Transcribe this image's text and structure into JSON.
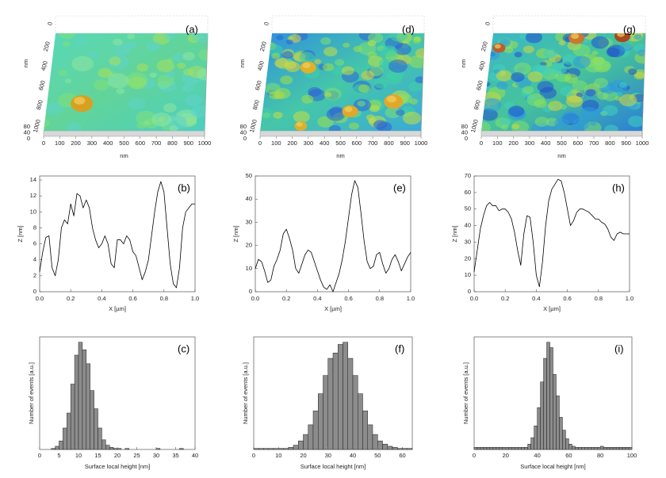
{
  "chart_data": [
    {
      "type": "surface",
      "label": "(a)",
      "xlabel": "nm",
      "ylabel": "nm",
      "xlim": [
        0,
        1000
      ],
      "xticks": [
        0,
        100,
        200,
        300,
        400,
        500,
        600,
        700,
        800,
        900,
        1000
      ],
      "ylim": [
        0,
        1000
      ],
      "yticks": [
        0,
        200,
        400,
        600,
        800,
        1000
      ],
      "zlim": [
        0,
        80
      ],
      "zticks": [
        80,
        40,
        0
      ]
    },
    {
      "type": "surface",
      "label": "(d)",
      "xlabel": "nm",
      "ylabel": "nm",
      "xlim": [
        0,
        1000
      ],
      "xticks": [
        0,
        100,
        200,
        300,
        400,
        500,
        600,
        700,
        800,
        900,
        1000
      ],
      "ylim": [
        0,
        1000
      ],
      "yticks": [
        0,
        200,
        400,
        600,
        800,
        1000
      ],
      "zlim": [
        0,
        80
      ],
      "zticks": [
        80,
        40,
        0
      ]
    },
    {
      "type": "surface",
      "label": "(g)",
      "xlabel": "nm",
      "ylabel": "nm",
      "xlim": [
        0,
        1000
      ],
      "xticks": [
        0,
        100,
        200,
        300,
        400,
        500,
        600,
        700,
        800,
        900,
        1000
      ],
      "ylim": [
        0,
        1000
      ],
      "yticks": [
        0,
        200,
        400,
        600,
        800,
        1000
      ],
      "zlim": [
        0,
        80
      ],
      "zticks": [
        80,
        40,
        0
      ]
    },
    {
      "type": "line",
      "label": "(b)",
      "xlabel": "X [µm]",
      "ylabel": "Z [nm]",
      "color": "#000000",
      "xlim": [
        0,
        1
      ],
      "ylim": [
        0,
        14.5
      ],
      "xticks": [
        {
          "value": 0,
          "label": "0.0"
        },
        0.2,
        0.4,
        0.6,
        0.8,
        {
          "value": 1,
          "label": "1.0"
        }
      ],
      "yticks": [
        0,
        2,
        4,
        6,
        8,
        10,
        12,
        14
      ],
      "x": [
        0,
        0.02,
        0.04,
        0.06,
        0.08,
        0.1,
        0.12,
        0.14,
        0.16,
        0.18,
        0.2,
        0.22,
        0.24,
        0.26,
        0.28,
        0.3,
        0.32,
        0.34,
        0.36,
        0.38,
        0.4,
        0.42,
        0.44,
        0.46,
        0.48,
        0.5,
        0.52,
        0.54,
        0.56,
        0.58,
        0.6,
        0.62,
        0.64,
        0.66,
        0.68,
        0.7,
        0.72,
        0.74,
        0.76,
        0.78,
        0.8,
        0.82,
        0.84,
        0.86,
        0.88,
        0.9,
        0.92,
        0.94,
        0.96,
        0.98,
        1
      ],
      "values": [
        2.5,
        5,
        6.8,
        7,
        3,
        2,
        4,
        8,
        9,
        8.5,
        11,
        9.5,
        12.3,
        12,
        10.5,
        11.5,
        10.5,
        8,
        6.5,
        5.5,
        6,
        7,
        6,
        3.5,
        3,
        6.5,
        6.5,
        6,
        7,
        6.5,
        5,
        4.5,
        3,
        1.5,
        2.5,
        4,
        7,
        10,
        12.5,
        13.8,
        12.5,
        8,
        3.5,
        1,
        0.5,
        3,
        8,
        10,
        10.5,
        11,
        11
      ]
    },
    {
      "type": "line",
      "label": "(e)",
      "xlabel": "X [µm]",
      "ylabel": "Z [nm]",
      "color": "#000000",
      "xlim": [
        0,
        1
      ],
      "ylim": [
        0,
        50
      ],
      "xticks": [
        {
          "value": 0,
          "label": "0.0"
        },
        0.2,
        0.4,
        0.6,
        0.8,
        {
          "value": 1,
          "label": "1.0"
        }
      ],
      "yticks": [
        0,
        10,
        20,
        30,
        40,
        50
      ],
      "x": [
        0,
        0.02,
        0.04,
        0.06,
        0.08,
        0.1,
        0.12,
        0.14,
        0.16,
        0.18,
        0.2,
        0.22,
        0.24,
        0.26,
        0.28,
        0.3,
        0.32,
        0.34,
        0.36,
        0.38,
        0.4,
        0.42,
        0.44,
        0.46,
        0.48,
        0.5,
        0.52,
        0.54,
        0.56,
        0.58,
        0.6,
        0.62,
        0.64,
        0.66,
        0.68,
        0.7,
        0.72,
        0.74,
        0.76,
        0.78,
        0.8,
        0.82,
        0.84,
        0.86,
        0.88,
        0.9,
        0.92,
        0.94,
        0.96,
        0.98,
        1
      ],
      "values": [
        10,
        14,
        13,
        9,
        4,
        5,
        11,
        14,
        18,
        25,
        27,
        23,
        18,
        10,
        8,
        12,
        16,
        18,
        17,
        13,
        9,
        5,
        2,
        1,
        3,
        0,
        4,
        8,
        14,
        22,
        32,
        42,
        48,
        45,
        34,
        22,
        13,
        10,
        11,
        16,
        17,
        12,
        8,
        10,
        14,
        16,
        13,
        9,
        12,
        15,
        17
      ]
    },
    {
      "type": "line",
      "label": "(h)",
      "xlabel": "X [µm]",
      "ylabel": "Z [nm]",
      "color": "#000000",
      "xlim": [
        0,
        1
      ],
      "ylim": [
        0,
        70
      ],
      "xticks": [
        {
          "value": 0,
          "label": "0.0"
        },
        0.2,
        0.4,
        0.6,
        0.8,
        {
          "value": 1,
          "label": "1.0"
        }
      ],
      "yticks": [
        0,
        10,
        20,
        30,
        40,
        50,
        60,
        70
      ],
      "x": [
        0,
        0.02,
        0.04,
        0.06,
        0.08,
        0.1,
        0.12,
        0.14,
        0.16,
        0.18,
        0.2,
        0.22,
        0.24,
        0.26,
        0.28,
        0.3,
        0.32,
        0.34,
        0.36,
        0.38,
        0.4,
        0.42,
        0.44,
        0.46,
        0.48,
        0.5,
        0.52,
        0.54,
        0.56,
        0.58,
        0.6,
        0.62,
        0.64,
        0.66,
        0.68,
        0.7,
        0.72,
        0.74,
        0.76,
        0.78,
        0.8,
        0.82,
        0.84,
        0.86,
        0.88,
        0.9,
        0.92,
        0.94,
        0.96,
        0.98,
        1
      ],
      "values": [
        12,
        25,
        38,
        46,
        52,
        54,
        52,
        52,
        49,
        50,
        50,
        48,
        44,
        36,
        25,
        16,
        35,
        46,
        45,
        30,
        10,
        3,
        18,
        40,
        55,
        62,
        65,
        68,
        67,
        60,
        50,
        40,
        43,
        48,
        50,
        50,
        49,
        48,
        46,
        44,
        44,
        42,
        41,
        38,
        33,
        31,
        35,
        36,
        35,
        35,
        35
      ]
    },
    {
      "type": "histogram",
      "label": "(c)",
      "xlabel": "Surface local height [nm]",
      "ylabel": "Number of events [a.u.]",
      "color": "#8c8c8c",
      "xlim": [
        0,
        40
      ],
      "ylim": [
        0,
        105
      ],
      "xticks": [
        0,
        5,
        10,
        15,
        20,
        25,
        30,
        35,
        40
      ],
      "bins": [
        0,
        1,
        2,
        3,
        4,
        5,
        6,
        7,
        8,
        9,
        10,
        11,
        12,
        13,
        14,
        15,
        16,
        17,
        18,
        19,
        20,
        21,
        22,
        23,
        24,
        25,
        26,
        27,
        28,
        29,
        30,
        31,
        32,
        33,
        34,
        35,
        36,
        37,
        38,
        39,
        40
      ],
      "counts": [
        0,
        0,
        0,
        1,
        3,
        8,
        20,
        34,
        61,
        88,
        100,
        93,
        80,
        55,
        38,
        20,
        9,
        4,
        2,
        1,
        1,
        0,
        1,
        0,
        0,
        0,
        0,
        0,
        0,
        0,
        1,
        0,
        0,
        0,
        0,
        0,
        1,
        0,
        0,
        0
      ]
    },
    {
      "type": "histogram",
      "label": "(f)",
      "xlabel": "Surface local height [nm]",
      "ylabel": "Number of events [a.u.]",
      "color": "#8c8c8c",
      "xlim": [
        0,
        64
      ],
      "ylim": [
        0,
        105
      ],
      "xticks": [
        0,
        10,
        20,
        30,
        40,
        50,
        60
      ],
      "bins": [
        0,
        2,
        4,
        6,
        8,
        10,
        12,
        14,
        16,
        18,
        20,
        22,
        24,
        26,
        28,
        30,
        32,
        34,
        36,
        38,
        40,
        42,
        44,
        46,
        48,
        50,
        52,
        54,
        56,
        58,
        60,
        62,
        64
      ],
      "counts": [
        1,
        1,
        1,
        1,
        1,
        1,
        1,
        2,
        4,
        8,
        14,
        23,
        36,
        52,
        69,
        85,
        90,
        98,
        100,
        85,
        69,
        52,
        36,
        23,
        14,
        8,
        5,
        3,
        2,
        1,
        1,
        1
      ]
    },
    {
      "type": "histogram",
      "label": "(i)",
      "xlabel": "Surface local height [nm]",
      "ylabel": "Number of events [a.u.]",
      "color": "#8c8c8c",
      "xlim": [
        0,
        100
      ],
      "ylim": [
        0,
        105
      ],
      "xticks": [
        0,
        20,
        40,
        60,
        80,
        100
      ],
      "bins": [
        0,
        2,
        4,
        6,
        8,
        10,
        12,
        14,
        16,
        18,
        20,
        22,
        24,
        26,
        28,
        30,
        32,
        34,
        36,
        38,
        40,
        42,
        44,
        46,
        48,
        50,
        52,
        54,
        56,
        58,
        60,
        62,
        64,
        66,
        68,
        70,
        72,
        74,
        76,
        78,
        80,
        82,
        84,
        86,
        88,
        90,
        92,
        94,
        96,
        98,
        100
      ],
      "counts": [
        2,
        2,
        2,
        2,
        2,
        2,
        2,
        2,
        2,
        2,
        2,
        2,
        2,
        2,
        2,
        2,
        2,
        5,
        11,
        22,
        39,
        63,
        85,
        100,
        95,
        70,
        50,
        30,
        18,
        10,
        5,
        3,
        2,
        2,
        2,
        2,
        2,
        2,
        2,
        2,
        3,
        2,
        2,
        2,
        2,
        2,
        2,
        2,
        2,
        2
      ]
    }
  ]
}
